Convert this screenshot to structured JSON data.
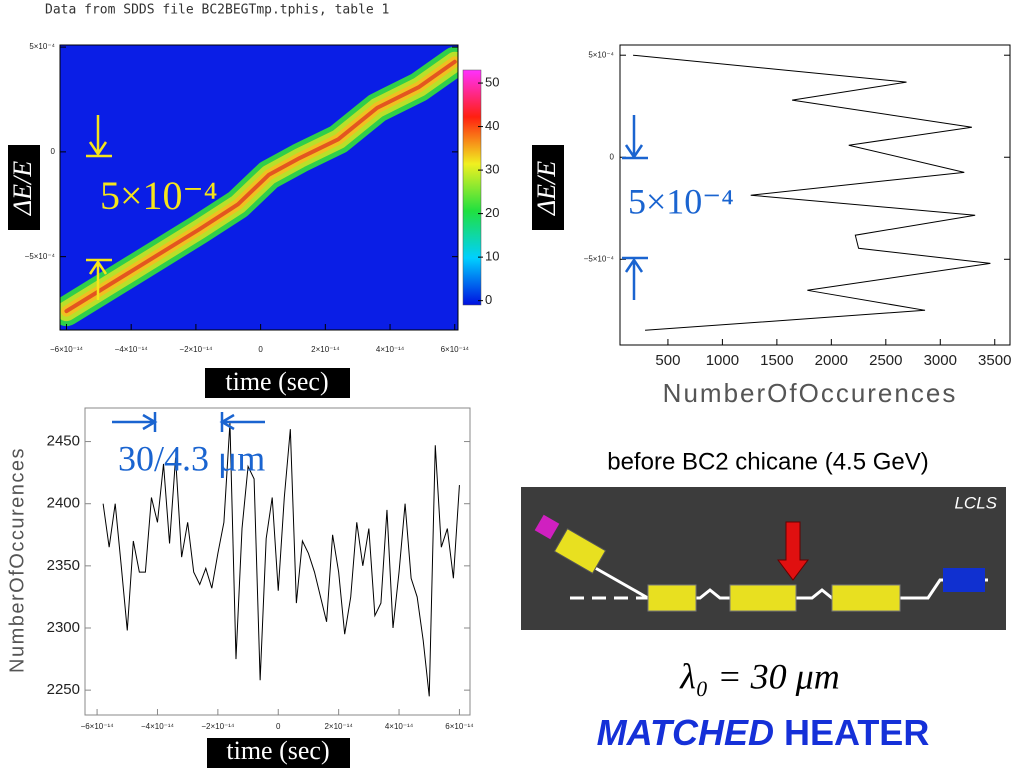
{
  "chart_data": [
    {
      "type": "heatmap",
      "title": "Data from SDDS file BC2BEGTmp.tphis, table 1",
      "xlabel": "time (sec)",
      "ylabel": "ΔE/E",
      "annotation": "5×10⁻⁴",
      "x": [
        -6e-14,
        -4e-14,
        -1.9e-14,
        -7e-15,
        2.5e-15,
        1.2e-14,
        2.4e-14,
        3.6e-14,
        4.9e-14,
        6e-14
      ],
      "values": [
        -0.00076,
        -0.00057,
        -0.00037,
        -0.00025,
        -0.00011,
        -3e-05,
        6e-05,
        0.00021,
        0.00031,
        0.00043
      ],
      "background": "#0a1ee6",
      "xlim": [
        -6.2e-14,
        6.1e-14
      ],
      "ylim": [
        -0.00085,
        0.00051
      ],
      "xticks": [
        {
          "value": -6e-14,
          "label": "−6×10⁻¹⁴"
        },
        {
          "value": -4e-14,
          "label": "−4×10⁻¹⁴"
        },
        {
          "value": -2e-14,
          "label": "−2×10⁻¹⁴"
        },
        0,
        {
          "value": 2e-14,
          "label": "2×10⁻¹⁴"
        },
        {
          "value": 4e-14,
          "label": "4×10⁻¹⁴"
        },
        {
          "value": 6e-14,
          "label": "6×10⁻¹⁴"
        }
      ],
      "yticks": [
        {
          "value": 0.0005,
          "label": "5×10⁻⁴"
        },
        0,
        {
          "value": -0.0005,
          "label": "−5×10⁻⁴"
        }
      ],
      "clim": [
        -1,
        53
      ],
      "cticks": [
        0,
        10,
        20,
        30,
        40,
        50
      ]
    },
    {
      "type": "line",
      "orientation": "horizontal",
      "xlabel": "NumberOfOccurences",
      "ylabel": "ΔE/E",
      "annotation": "5×10⁻⁴",
      "color": "#000000",
      "y": [
        0.0005,
        0.000368,
        0.00028,
        0.000147,
        5.9e-05,
        -7.4e-05,
        -0.000186,
        -0.000284,
        -0.000382,
        -0.000446,
        -0.00052,
        -0.000652,
        -0.00075,
        -0.000848
      ],
      "values": [
        180,
        2690,
        1640,
        3290,
        2160,
        3220,
        1260,
        3320,
        2220,
        2250,
        3460,
        1780,
        2860,
        290
      ],
      "xlim": [
        60,
        3640
      ],
      "ylim": [
        -0.00092,
        0.00055
      ],
      "xticks": [
        500,
        1000,
        1500,
        2000,
        2500,
        3000,
        3500
      ],
      "yticks": [
        {
          "value": 0.0005,
          "label": "5×10⁻⁴"
        },
        0,
        {
          "value": -0.0005,
          "label": "−5×10⁻⁴"
        }
      ]
    },
    {
      "type": "line",
      "xlabel": "time (sec)",
      "ylabel": "NumberOfOccurences",
      "annotation": "30/4.3 μm",
      "color": "#000000",
      "x": [
        -5.8e-14,
        -5.6e-14,
        -5.4e-14,
        -5.2e-14,
        -5e-14,
        -4.8e-14,
        -4.6e-14,
        -4.4e-14,
        -4.2e-14,
        -4e-14,
        -3.8e-14,
        -3.6e-14,
        -3.4e-14,
        -3.2e-14,
        -3e-14,
        -2.8e-14,
        -2.6e-14,
        -2.4e-14,
        -2.2e-14,
        -2e-14,
        -1.8e-14,
        -1.6e-14,
        -1.4e-14,
        -1.2e-14,
        -1e-14,
        -8e-15,
        -6e-15,
        -4e-15,
        -2e-15,
        0,
        2e-15,
        4e-15,
        6e-15,
        8e-15,
        1e-14,
        1.2e-14,
        1.4e-14,
        1.6e-14,
        1.8e-14,
        2e-14,
        2.2e-14,
        2.4e-14,
        2.6e-14,
        2.8e-14,
        3e-14,
        3.2e-14,
        3.4e-14,
        3.6e-14,
        3.8e-14,
        4e-14,
        4.2e-14,
        4.4e-14,
        4.6e-14,
        4.8e-14,
        5e-14,
        5.2e-14,
        5.4e-14,
        5.6e-14,
        5.8e-14,
        6e-14
      ],
      "values": [
        2400,
        2365,
        2400,
        2350,
        2298,
        2370,
        2345,
        2345,
        2405,
        2385,
        2432,
        2368,
        2437,
        2357,
        2385,
        2345,
        2335,
        2348,
        2332,
        2360,
        2385,
        2465,
        2275,
        2380,
        2430,
        2420,
        2258,
        2372,
        2405,
        2330,
        2405,
        2460,
        2320,
        2370,
        2360,
        2345,
        2325,
        2305,
        2375,
        2345,
        2295,
        2325,
        2385,
        2350,
        2380,
        2310,
        2320,
        2395,
        2300,
        2345,
        2400,
        2340,
        2325,
        2290,
        2245,
        2447,
        2365,
        2380,
        2340,
        2415
      ],
      "xlim": [
        -6.4e-14,
        6.35e-14
      ],
      "ylim": [
        2230,
        2477
      ],
      "xticks": [
        {
          "value": -6e-14,
          "label": "−6×10⁻¹⁴"
        },
        {
          "value": -4e-14,
          "label": "−4×10⁻¹⁴"
        },
        {
          "value": -2e-14,
          "label": "−2×10⁻¹⁴"
        },
        0,
        {
          "value": 2e-14,
          "label": "2×10⁻¹⁴"
        },
        {
          "value": 4e-14,
          "label": "4×10⁻¹⁴"
        },
        {
          "value": 6e-14,
          "label": "6×10⁻¹⁴"
        }
      ],
      "yticks": [
        2250,
        2300,
        2350,
        2400,
        2450
      ]
    }
  ],
  "diagram": {
    "caption": "before BC2 chicane (4.5 GeV)",
    "label": "LCLS"
  },
  "footer": {
    "wavelength": "λ₀ = 30 μm",
    "emphasis": "MATCHED",
    "rest": "HEATER"
  }
}
